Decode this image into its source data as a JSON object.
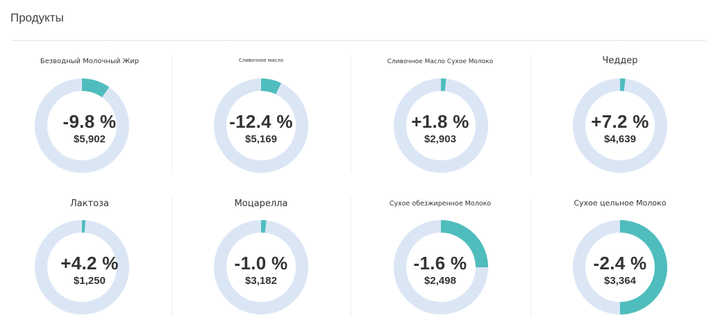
{
  "page": {
    "title": "Продукты"
  },
  "colors": {
    "track": "#dbe6f5",
    "fill": "#4fbdbd"
  },
  "products": [
    {
      "name": "Безводный Молочный Жир",
      "change": "-9.8 %",
      "value": "$5,902",
      "share": 0.098
    },
    {
      "name": "Сливочное масло",
      "change": "-12.4 %",
      "value": "$5,169",
      "share": 0.07
    },
    {
      "name": "Сливочное Масло Сухое Молоко",
      "change": "+1.8 %",
      "value": "$2,903",
      "share": 0.018
    },
    {
      "name": "Чеддер",
      "change": "+7.2 %",
      "value": "$4,639",
      "share": 0.018
    },
    {
      "name": "Лактоза",
      "change": "+4.2 %",
      "value": "$1,250",
      "share": 0.012
    },
    {
      "name": "Моцарелла",
      "change": "-1.0 %",
      "value": "$3,182",
      "share": 0.018
    },
    {
      "name": "Сухое обезжиренное Молоко",
      "change": "-1.6 %",
      "value": "$2,498",
      "share": 0.25
    },
    {
      "name": "Сухое цельное Молоко",
      "change": "-2.4 %",
      "value": "$3,364",
      "share": 0.5
    }
  ]
}
